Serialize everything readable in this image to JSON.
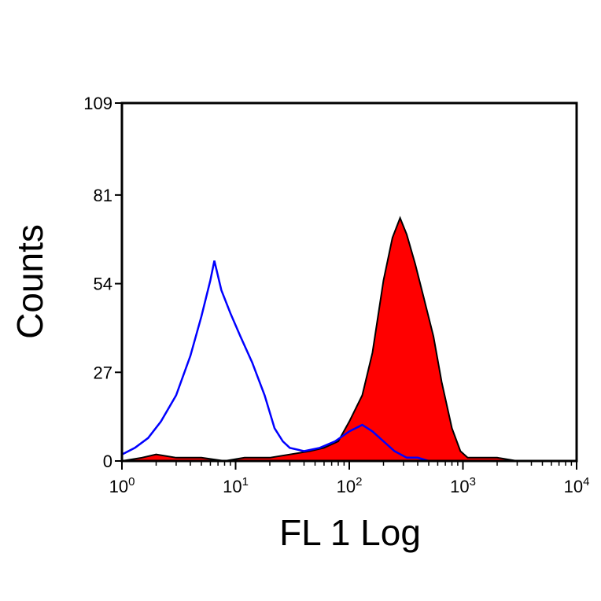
{
  "chart_data": {
    "type": "area",
    "title": "",
    "xlabel": "FL 1 Log",
    "ylabel": "Counts",
    "xscale": "log",
    "xlim": [
      1,
      10000
    ],
    "ylim": [
      0,
      109
    ],
    "x_ticks": [
      {
        "base": "10",
        "exp": "0",
        "value": 1
      },
      {
        "base": "10",
        "exp": "1",
        "value": 10
      },
      {
        "base": "10",
        "exp": "2",
        "value": 100
      },
      {
        "base": "10",
        "exp": "3",
        "value": 1000
      },
      {
        "base": "10",
        "exp": "4",
        "value": 10000
      }
    ],
    "y_ticks": [
      "0",
      "27",
      "54",
      "81",
      "109"
    ],
    "y_tick_values": [
      0,
      27,
      54,
      81,
      109
    ],
    "grid": false,
    "legend": "none",
    "series": [
      {
        "style": "filled",
        "color": "#ff0000",
        "outline": "#000000",
        "x": [
          1,
          1.5,
          2,
          3,
          5,
          8,
          12,
          20,
          30,
          45,
          60,
          80,
          100,
          130,
          160,
          200,
          240,
          280,
          320,
          380,
          450,
          550,
          650,
          800,
          950,
          1100,
          1500,
          2000,
          3000
        ],
        "y": [
          0,
          1,
          2,
          1,
          1,
          0,
          1,
          1,
          2,
          3,
          4,
          6,
          12,
          20,
          33,
          55,
          68,
          74,
          69,
          60,
          50,
          38,
          24,
          10,
          3,
          1,
          1,
          1,
          0
        ]
      },
      {
        "style": "line",
        "color": "#0000ff",
        "x": [
          1,
          1.3,
          1.7,
          2.2,
          3,
          4,
          5,
          6,
          6.5,
          7.5,
          9,
          11,
          14,
          18,
          22,
          26,
          30,
          40,
          55,
          75,
          100,
          130,
          160,
          200,
          250,
          320,
          400,
          500,
          600
        ],
        "y": [
          2,
          4,
          7,
          12,
          20,
          32,
          44,
          55,
          61,
          52,
          45,
          38,
          30,
          20,
          10,
          6,
          4,
          3,
          4,
          6,
          9,
          11,
          9,
          6,
          3,
          1,
          1,
          0,
          0
        ]
      }
    ]
  }
}
